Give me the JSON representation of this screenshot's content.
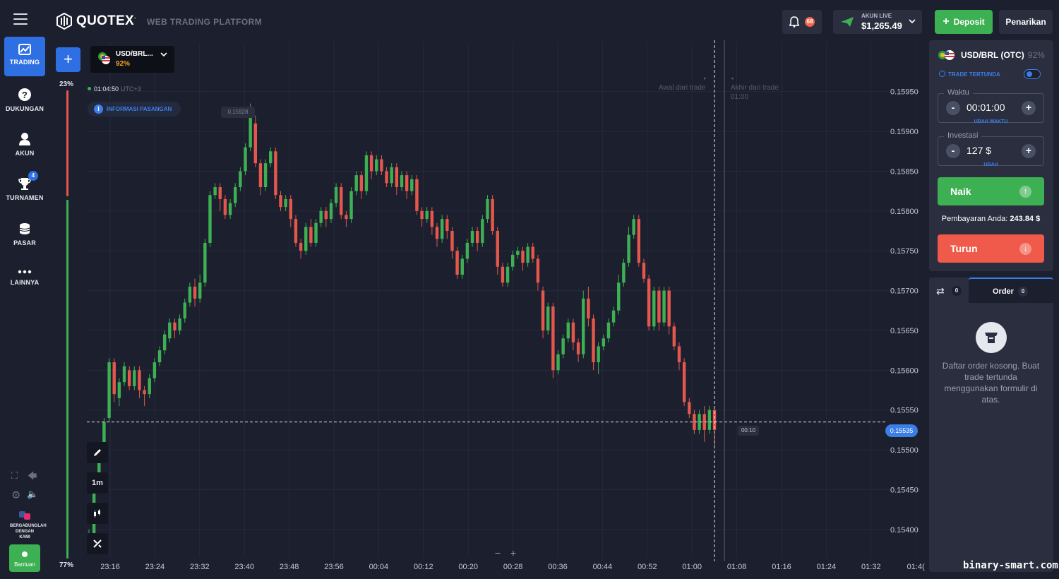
{
  "header": {
    "brand": "QUOTEX",
    "subtitle": "WEB TRADING PLATFORM",
    "notifications": "68",
    "account_label": "AKUN LIVE",
    "account_balance": "$1,265.49",
    "deposit_label": "Deposit",
    "withdraw_label": "Penarikan"
  },
  "sidebar": {
    "items": [
      {
        "label": "TRADING",
        "icon": "chart-icon"
      },
      {
        "label": "DUKUNGAN",
        "icon": "question-icon"
      },
      {
        "label": "AKUN",
        "icon": "user-icon"
      },
      {
        "label": "TURNAMEN",
        "icon": "trophy-icon",
        "badge": "4"
      },
      {
        "label": "PASAR",
        "icon": "coins-icon"
      },
      {
        "label": "LAINNYA",
        "icon": "more-icon"
      }
    ],
    "join_label": "BERGABUNGLAH DENGAN KAMI",
    "help_label": "Bantuan"
  },
  "chart_header": {
    "asset": "USD/BRL...",
    "asset_payout": "92%",
    "clock": "01:04:50",
    "timezone": "UTC+3",
    "info_label": "INFORMASI PASANGAN",
    "sentiment_sell": "23%",
    "sentiment_buy": "77%",
    "max_price_label": "0.15928",
    "start_trade_label": "Awal dari trade",
    "end_trade_label": "Akhir dari trade",
    "end_trade_time": "01:00",
    "countdown": "00:10",
    "current_price": "0.15535",
    "timeframe": "1m"
  },
  "chart_data": {
    "type": "candlestick",
    "ylim": [
      0.15375,
      0.15995
    ],
    "y_ticks": [
      "0.15950",
      "0.15900",
      "0.15850",
      "0.15800",
      "0.15750",
      "0.15700",
      "0.15650",
      "0.15600",
      "0.15550",
      "0.15500",
      "0.15450",
      "0.15400"
    ],
    "x_ticks": [
      "23:16",
      "23:24",
      "23:32",
      "23:40",
      "23:48",
      "23:56",
      "00:04",
      "00:12",
      "00:20",
      "00:28",
      "00:36",
      "00:44",
      "00:52",
      "01:00",
      "01:08",
      "01:16",
      "01:24",
      "01:32",
      "01:4("
    ],
    "current_price": 0.15535,
    "colors": {
      "up": "#3db054",
      "down": "#e4574c"
    },
    "candles": [
      [
        0.15385,
        0.15395,
        0.1538,
        0.154
      ],
      [
        0.15395,
        0.15465,
        0.1539,
        0.1547
      ],
      [
        0.1546,
        0.155,
        0.15455,
        0.1551
      ],
      [
        0.155,
        0.15535,
        0.15495,
        0.1554
      ],
      [
        0.1554,
        0.1561,
        0.15535,
        0.15615
      ],
      [
        0.1561,
        0.1557,
        0.1556,
        0.15615
      ],
      [
        0.15565,
        0.15585,
        0.15555,
        0.1559
      ],
      [
        0.15585,
        0.15605,
        0.1558,
        0.1561
      ],
      [
        0.156,
        0.1558,
        0.15575,
        0.15605
      ],
      [
        0.1558,
        0.156,
        0.15575,
        0.15605
      ],
      [
        0.156,
        0.15575,
        0.15565,
        0.15605
      ],
      [
        0.15575,
        0.1557,
        0.15555,
        0.1558
      ],
      [
        0.1557,
        0.1559,
        0.15565,
        0.15595
      ],
      [
        0.1559,
        0.1561,
        0.15585,
        0.15615
      ],
      [
        0.1561,
        0.15625,
        0.15605,
        0.1563
      ],
      [
        0.15625,
        0.15645,
        0.1562,
        0.1565
      ],
      [
        0.1564,
        0.1566,
        0.15635,
        0.15665
      ],
      [
        0.1566,
        0.1565,
        0.1564,
        0.15665
      ],
      [
        0.1565,
        0.15665,
        0.15645,
        0.1567
      ],
      [
        0.15665,
        0.15685,
        0.1566,
        0.1569
      ],
      [
        0.15685,
        0.15705,
        0.1568,
        0.1571
      ],
      [
        0.15705,
        0.1569,
        0.1568,
        0.15715
      ],
      [
        0.1569,
        0.1571,
        0.15685,
        0.1572
      ],
      [
        0.1571,
        0.1576,
        0.15705,
        0.15765
      ],
      [
        0.1576,
        0.1582,
        0.15755,
        0.15825
      ],
      [
        0.1582,
        0.1583,
        0.15815,
        0.15835
      ],
      [
        0.1583,
        0.15815,
        0.158,
        0.15835
      ],
      [
        0.15815,
        0.15795,
        0.1579,
        0.1582
      ],
      [
        0.15795,
        0.1581,
        0.1579,
        0.15815
      ],
      [
        0.1581,
        0.1583,
        0.15805,
        0.15835
      ],
      [
        0.1583,
        0.1585,
        0.15825,
        0.15855
      ],
      [
        0.1585,
        0.1588,
        0.15845,
        0.15885
      ],
      [
        0.1588,
        0.1592,
        0.15875,
        0.15935
      ],
      [
        0.1591,
        0.1586,
        0.15855,
        0.1592
      ],
      [
        0.1586,
        0.1583,
        0.1582,
        0.15865
      ],
      [
        0.1583,
        0.1586,
        0.15825,
        0.15865
      ],
      [
        0.1586,
        0.15875,
        0.15855,
        0.1588
      ],
      [
        0.15875,
        0.1582,
        0.15815,
        0.1588
      ],
      [
        0.1582,
        0.15805,
        0.158,
        0.15825
      ],
      [
        0.15805,
        0.15815,
        0.158,
        0.1582
      ],
      [
        0.15815,
        0.1579,
        0.1578,
        0.1582
      ],
      [
        0.1579,
        0.1576,
        0.15755,
        0.15795
      ],
      [
        0.1576,
        0.1575,
        0.1574,
        0.15765
      ],
      [
        0.1575,
        0.1578,
        0.15745,
        0.15785
      ],
      [
        0.1578,
        0.1576,
        0.15755,
        0.1579
      ],
      [
        0.1576,
        0.15785,
        0.15755,
        0.1579
      ],
      [
        0.15785,
        0.158,
        0.1578,
        0.15805
      ],
      [
        0.158,
        0.1579,
        0.1578,
        0.15805
      ],
      [
        0.1579,
        0.1581,
        0.15785,
        0.15815
      ],
      [
        0.1581,
        0.1583,
        0.15805,
        0.15835
      ],
      [
        0.1583,
        0.15795,
        0.1579,
        0.15835
      ],
      [
        0.15795,
        0.1579,
        0.1578,
        0.158
      ],
      [
        0.1579,
        0.15825,
        0.15785,
        0.1583
      ],
      [
        0.15825,
        0.15845,
        0.1582,
        0.1585
      ],
      [
        0.15845,
        0.15825,
        0.15815,
        0.1585
      ],
      [
        0.15825,
        0.1587,
        0.1582,
        0.15875
      ],
      [
        0.1587,
        0.1585,
        0.1584,
        0.15875
      ],
      [
        0.1585,
        0.15865,
        0.15845,
        0.1587
      ],
      [
        0.15865,
        0.1585,
        0.15845,
        0.1587
      ],
      [
        0.1585,
        0.15835,
        0.1583,
        0.15855
      ],
      [
        0.15835,
        0.15855,
        0.1583,
        0.1586
      ],
      [
        0.15855,
        0.1583,
        0.1582,
        0.1586
      ],
      [
        0.1583,
        0.15845,
        0.15825,
        0.1585
      ],
      [
        0.15845,
        0.15825,
        0.15815,
        0.1585
      ],
      [
        0.15825,
        0.1584,
        0.1582,
        0.15845
      ],
      [
        0.1584,
        0.158,
        0.15795,
        0.15845
      ],
      [
        0.158,
        0.1579,
        0.1578,
        0.15805
      ],
      [
        0.1579,
        0.158,
        0.15785,
        0.15805
      ],
      [
        0.158,
        0.1578,
        0.1577,
        0.15805
      ],
      [
        0.1578,
        0.15765,
        0.15755,
        0.15785
      ],
      [
        0.15765,
        0.1579,
        0.1576,
        0.15795
      ],
      [
        0.1579,
        0.15775,
        0.15765,
        0.15795
      ],
      [
        0.15775,
        0.1575,
        0.1574,
        0.1578
      ],
      [
        0.1575,
        0.1572,
        0.15715,
        0.15755
      ],
      [
        0.1572,
        0.1574,
        0.15715,
        0.15745
      ],
      [
        0.1574,
        0.1576,
        0.15735,
        0.15765
      ],
      [
        0.1576,
        0.15775,
        0.15755,
        0.1578
      ],
      [
        0.15775,
        0.1576,
        0.1575,
        0.1578
      ],
      [
        0.1576,
        0.1579,
        0.15755,
        0.15795
      ],
      [
        0.1579,
        0.15815,
        0.15785,
        0.1582
      ],
      [
        0.15815,
        0.15775,
        0.1577,
        0.1582
      ],
      [
        0.15775,
        0.1573,
        0.1572,
        0.1578
      ],
      [
        0.1573,
        0.1571,
        0.15705,
        0.15735
      ],
      [
        0.1571,
        0.1573,
        0.15705,
        0.15735
      ],
      [
        0.1573,
        0.15745,
        0.15725,
        0.1575
      ],
      [
        0.15745,
        0.1575,
        0.1574,
        0.15755
      ],
      [
        0.1575,
        0.15735,
        0.15725,
        0.15755
      ],
      [
        0.15735,
        0.15755,
        0.1573,
        0.1576
      ],
      [
        0.15755,
        0.1574,
        0.15735,
        0.1576
      ],
      [
        0.1574,
        0.1571,
        0.157,
        0.15745
      ],
      [
        0.157,
        0.1565,
        0.1564,
        0.15705
      ],
      [
        0.1565,
        0.1568,
        0.15645,
        0.15685
      ],
      [
        0.1568,
        0.156,
        0.1559,
        0.15685
      ],
      [
        0.156,
        0.1562,
        0.15595,
        0.15625
      ],
      [
        0.1562,
        0.1564,
        0.15615,
        0.15645
      ],
      [
        0.1564,
        0.1566,
        0.15635,
        0.15665
      ],
      [
        0.1566,
        0.15635,
        0.15625,
        0.15665
      ],
      [
        0.15635,
        0.1562,
        0.1561,
        0.1564
      ],
      [
        0.1562,
        0.1569,
        0.15615,
        0.157
      ],
      [
        0.1569,
        0.15665,
        0.15655,
        0.15705
      ],
      [
        0.15665,
        0.1561,
        0.156,
        0.1567
      ],
      [
        0.1561,
        0.1563,
        0.15595,
        0.15635
      ],
      [
        0.1563,
        0.1564,
        0.15625,
        0.15645
      ],
      [
        0.1564,
        0.1566,
        0.15635,
        0.15665
      ],
      [
        0.1566,
        0.15675,
        0.15655,
        0.1568
      ],
      [
        0.15675,
        0.1571,
        0.1567,
        0.1572
      ],
      [
        0.1571,
        0.15735,
        0.15705,
        0.1574
      ],
      [
        0.15735,
        0.1577,
        0.1573,
        0.1578
      ],
      [
        0.1577,
        0.1579,
        0.15765,
        0.15795
      ],
      [
        0.1579,
        0.15735,
        0.1573,
        0.15795
      ],
      [
        0.15735,
        0.15715,
        0.1571,
        0.1574
      ],
      [
        0.15715,
        0.15655,
        0.1565,
        0.1572
      ],
      [
        0.15655,
        0.157,
        0.1565,
        0.15705
      ],
      [
        0.157,
        0.1566,
        0.1565,
        0.15705
      ],
      [
        0.1566,
        0.157,
        0.15655,
        0.15705
      ],
      [
        0.157,
        0.15655,
        0.15645,
        0.15705
      ],
      [
        0.15655,
        0.1563,
        0.15625,
        0.1566
      ],
      [
        0.1563,
        0.1561,
        0.156,
        0.15635
      ],
      [
        0.1561,
        0.1556,
        0.15555,
        0.15615
      ],
      [
        0.1556,
        0.15545,
        0.1554,
        0.15565
      ],
      [
        0.15545,
        0.15525,
        0.1552,
        0.1555
      ],
      [
        0.15525,
        0.15545,
        0.1552,
        0.1555
      ],
      [
        0.15545,
        0.15525,
        0.1551,
        0.15555
      ],
      [
        0.15525,
        0.1555,
        0.1552,
        0.15555
      ],
      [
        0.1555,
        0.15525,
        0.15505,
        0.15555
      ]
    ]
  },
  "tools": {
    "draw_icon": "pencil-icon",
    "timeframe_label": "1m",
    "indicator_icon": "candles-icon",
    "settings_icon": "tools-icon",
    "zoom_out": "−",
    "zoom_in": "+"
  },
  "panel": {
    "asset": "USD/BRL (OTC)",
    "payout_pct": "92%",
    "pending_label": "TRADE TERTUNDA",
    "time_legend": "Waktu",
    "time_value": "00:01:00",
    "time_sub": "UBAH WAKTU",
    "invest_legend": "Investasi",
    "invest_value": "127 $",
    "invest_sub": "UBAH",
    "up_label": "Naik",
    "payout_label": "Pembayaran Anda:",
    "payout_value": "243.84 $",
    "down_label": "Turun",
    "minus": "-",
    "plus": "+"
  },
  "orders": {
    "swap_count": "0",
    "tab_label": "Order",
    "order_count": "0",
    "empty_text": "Daftar order kosong. Buat trade tertunda menggunakan formulir di atas."
  },
  "watermark": "binary-smart.com"
}
